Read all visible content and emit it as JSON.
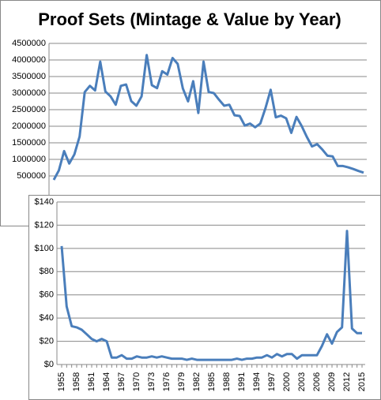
{
  "chart_data": [
    {
      "type": "line",
      "title": "Proof Sets (Mintage & Value by Year)",
      "color": "#4a7ebb",
      "grid": true,
      "values": [
        380000,
        670000,
        1250000,
        875000,
        1150000,
        1690000,
        3030000,
        3220000,
        3080000,
        3950000,
        3050000,
        2900000,
        2650000,
        3220000,
        3260000,
        2760000,
        2620000,
        2900000,
        4150000,
        3240000,
        3150000,
        3660000,
        3560000,
        4060000,
        3880000,
        3140000,
        2750000,
        3360000,
        2400000,
        3950000,
        3030000,
        3000000,
        2800000,
        2620000,
        2650000,
        2330000,
        2310000,
        2020000,
        2080000,
        1970000,
        2080000,
        2550000,
        3100000,
        2270000,
        2320000,
        2240000,
        1800000,
        2280000,
        2010000,
        1680000,
        1390000,
        1460000,
        1300000,
        1110000,
        1090000,
        800000,
        800000,
        760000,
        710000,
        650000,
        600000
      ],
      "ylim": [
        0,
        4500000
      ],
      "yticks": [
        500000,
        1000000,
        1500000,
        2000000,
        2500000,
        3000000,
        3500000,
        4000000,
        4500000
      ]
    },
    {
      "type": "line",
      "color": "#4a7ebb",
      "grid": true,
      "categories": [
        "1955",
        null,
        null,
        "1958",
        null,
        null,
        "1961",
        null,
        null,
        "1964",
        null,
        null,
        "1967",
        null,
        null,
        "1970",
        null,
        null,
        "1973",
        null,
        null,
        "1976",
        null,
        null,
        "1979",
        null,
        null,
        "1982",
        null,
        null,
        "1985",
        null,
        null,
        "1988",
        null,
        null,
        "1991",
        null,
        null,
        "1994",
        null,
        null,
        "1997",
        null,
        null,
        "2000",
        null,
        null,
        "2003",
        null,
        null,
        "2006",
        null,
        null,
        "2009",
        null,
        null,
        "2012",
        null,
        null,
        "2015"
      ],
      "values": [
        102,
        50,
        33,
        32,
        30,
        26,
        22,
        20,
        22,
        20,
        6,
        6,
        8,
        5,
        5,
        7,
        6,
        6,
        7,
        6,
        7,
        6,
        5,
        5,
        5,
        4,
        5,
        4,
        4,
        4,
        4,
        4,
        4,
        4,
        4,
        5,
        4,
        5,
        5,
        6,
        6,
        8,
        6,
        9,
        7,
        9,
        9,
        5,
        8,
        8,
        8,
        8,
        16,
        26,
        18,
        28,
        32,
        115,
        31,
        27,
        27
      ],
      "ylim": [
        0,
        140
      ],
      "yticks": [
        {
          "value": 0,
          "label": "$0"
        },
        {
          "value": 20,
          "label": "$20"
        },
        {
          "value": 40,
          "label": "$40"
        },
        {
          "value": 60,
          "label": "$60"
        },
        {
          "value": 80,
          "label": "$80"
        },
        {
          "value": 100,
          "label": "$100"
        },
        {
          "value": 120,
          "label": "$120"
        },
        {
          "value": 140,
          "label": "$140"
        }
      ]
    }
  ]
}
